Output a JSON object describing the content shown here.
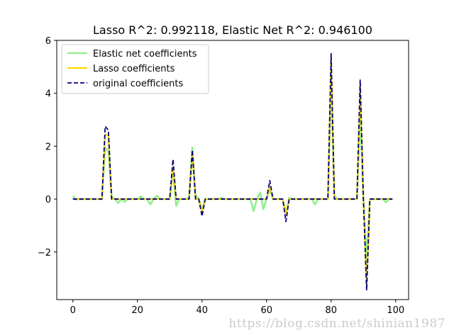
{
  "chart_data": {
    "type": "line",
    "title": "Lasso R^2: 0.992118, Elastic Net R^2: 0.946100",
    "xlabel": "",
    "ylabel": "",
    "xlim": [
      -5,
      104
    ],
    "ylim": [
      -3.8,
      6
    ],
    "x_ticks": [
      0,
      20,
      40,
      60,
      80,
      100
    ],
    "x_tick_labels": [
      "0",
      "20",
      "40",
      "60",
      "80",
      "100"
    ],
    "y_ticks": [
      -2,
      0,
      2,
      4,
      6
    ],
    "y_tick_labels": [
      "−2",
      "0",
      "2",
      "4",
      "6"
    ],
    "grid": false,
    "legend_position": "upper-left",
    "series": [
      {
        "name": "Elastic net coefficients",
        "color": "#90ee90",
        "style": "solid",
        "x": [
          0,
          1,
          2,
          3,
          4,
          5,
          6,
          7,
          8,
          9,
          10,
          11,
          12,
          13,
          14,
          15,
          16,
          17,
          18,
          19,
          20,
          21,
          22,
          23,
          24,
          25,
          26,
          27,
          28,
          29,
          30,
          31,
          32,
          33,
          34,
          35,
          36,
          37,
          38,
          39,
          40,
          41,
          42,
          43,
          44,
          45,
          46,
          47,
          48,
          49,
          50,
          51,
          52,
          53,
          54,
          55,
          56,
          57,
          58,
          59,
          60,
          61,
          62,
          63,
          64,
          65,
          66,
          67,
          68,
          69,
          70,
          71,
          72,
          73,
          74,
          75,
          76,
          77,
          78,
          79,
          80,
          81,
          82,
          83,
          84,
          85,
          86,
          87,
          88,
          89,
          90,
          91,
          92,
          93,
          94,
          95,
          96,
          97,
          98,
          99
        ],
        "values": [
          0.12,
          -0.02,
          0,
          0,
          0,
          0,
          0,
          0,
          0,
          0,
          1.95,
          1.8,
          0.1,
          0,
          -0.15,
          0,
          -0.1,
          0,
          0,
          0,
          0,
          0.1,
          0,
          -0.02,
          -0.2,
          0,
          0.12,
          0,
          0,
          0,
          0,
          1.05,
          -0.25,
          0,
          0,
          0,
          0.05,
          1.95,
          0.15,
          0,
          -0.38,
          0,
          0,
          0,
          0,
          0,
          0.05,
          0,
          0,
          0,
          0,
          0,
          0,
          0,
          0,
          0,
          -0.45,
          0,
          0.25,
          -0.38,
          0,
          0.35,
          0,
          0,
          0,
          0,
          -0.55,
          0.05,
          0,
          0,
          0,
          0,
          0,
          0,
          0,
          -0.2,
          0,
          0,
          0,
          0,
          4.4,
          0.12,
          0,
          0,
          0,
          0,
          0,
          0,
          0,
          3.2,
          0,
          -2.3,
          0,
          0,
          0,
          0,
          0,
          -0.12,
          0,
          0
        ]
      },
      {
        "name": "Lasso coefficients",
        "color": "#ffd700",
        "style": "solid",
        "x": [
          0,
          1,
          2,
          3,
          4,
          5,
          6,
          7,
          8,
          9,
          10,
          11,
          12,
          13,
          14,
          15,
          16,
          17,
          18,
          19,
          20,
          21,
          22,
          23,
          24,
          25,
          26,
          27,
          28,
          29,
          30,
          31,
          32,
          33,
          34,
          35,
          36,
          37,
          38,
          39,
          40,
          41,
          42,
          43,
          44,
          45,
          46,
          47,
          48,
          49,
          50,
          51,
          52,
          53,
          54,
          55,
          56,
          57,
          58,
          59,
          60,
          61,
          62,
          63,
          64,
          65,
          66,
          67,
          68,
          69,
          70,
          71,
          72,
          73,
          74,
          75,
          76,
          77,
          78,
          79,
          80,
          81,
          82,
          83,
          84,
          85,
          86,
          87,
          88,
          89,
          90,
          91,
          92,
          93,
          94,
          95,
          96,
          97,
          98,
          99
        ],
        "values": [
          0,
          0,
          0,
          0,
          0,
          0,
          0,
          0,
          0,
          0,
          2.45,
          2.4,
          0,
          0,
          0,
          0,
          0,
          0,
          0,
          0,
          0,
          0,
          0,
          0,
          0,
          0,
          0,
          0,
          0,
          0,
          0,
          1.2,
          0,
          0,
          0,
          0,
          0,
          1.75,
          0,
          0,
          -0.5,
          0,
          0,
          0,
          0,
          0,
          0,
          0,
          0,
          0,
          0,
          0,
          0,
          0,
          0,
          0,
          0,
          0,
          0,
          0,
          0,
          0.5,
          0,
          0,
          0,
          0,
          -0.6,
          0,
          0,
          0,
          0,
          0,
          0,
          0,
          0,
          0,
          0,
          0,
          0,
          0,
          5.3,
          0,
          0,
          0,
          0,
          0,
          0,
          0,
          0,
          4.3,
          0,
          -3.3,
          0,
          0,
          0,
          0,
          0,
          0,
          0,
          0
        ]
      },
      {
        "name": "original coefficients",
        "color": "#000080",
        "style": "dashed",
        "x": [
          0,
          1,
          2,
          3,
          4,
          5,
          6,
          7,
          8,
          9,
          10,
          11,
          12,
          13,
          14,
          15,
          16,
          17,
          18,
          19,
          20,
          21,
          22,
          23,
          24,
          25,
          26,
          27,
          28,
          29,
          30,
          31,
          32,
          33,
          34,
          35,
          36,
          37,
          38,
          39,
          40,
          41,
          42,
          43,
          44,
          45,
          46,
          47,
          48,
          49,
          50,
          51,
          52,
          53,
          54,
          55,
          56,
          57,
          58,
          59,
          60,
          61,
          62,
          63,
          64,
          65,
          66,
          67,
          68,
          69,
          70,
          71,
          72,
          73,
          74,
          75,
          76,
          77,
          78,
          79,
          80,
          81,
          82,
          83,
          84,
          85,
          86,
          87,
          88,
          89,
          90,
          91,
          92,
          93,
          94,
          95,
          96,
          97,
          98,
          99
        ],
        "values": [
          0,
          0,
          0,
          0,
          0,
          0,
          0,
          0,
          0,
          0,
          2.75,
          2.6,
          0,
          0,
          0,
          0,
          0,
          0,
          0,
          0,
          0,
          0,
          0,
          0,
          0,
          0,
          0,
          0,
          0,
          0,
          0,
          1.5,
          0,
          0,
          0,
          0,
          0,
          1.85,
          0,
          0,
          -0.65,
          0,
          0,
          0,
          0,
          0,
          0,
          0,
          0,
          0,
          0,
          0,
          0,
          0,
          0,
          0,
          0,
          0,
          0,
          0,
          0,
          0.7,
          0,
          0,
          0,
          0,
          -0.85,
          0,
          0,
          0,
          0,
          0,
          0,
          0,
          0,
          0,
          0,
          0,
          0,
          0,
          5.5,
          0,
          0,
          0,
          0,
          0,
          0,
          0,
          0,
          4.5,
          0,
          -3.45,
          0,
          0,
          0,
          0,
          0,
          0,
          0,
          0
        ]
      }
    ]
  },
  "watermark": "https://blog.csdn.net/shinian1987"
}
